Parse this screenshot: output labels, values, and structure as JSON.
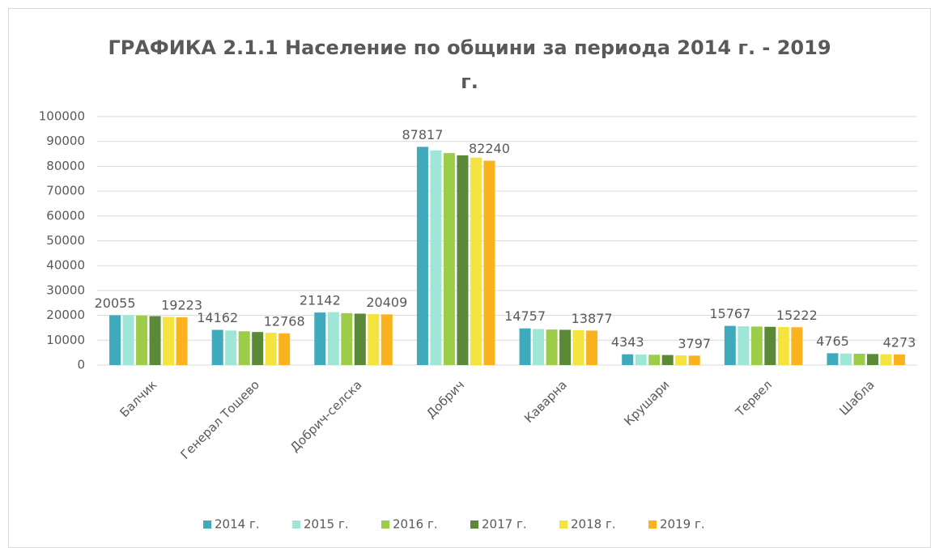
{
  "chart_data": {
    "type": "bar",
    "title": "ГРАФИКА 2.1.1 Население по общини за периода 2014 г. - 2019 г.",
    "categories": [
      "Балчик",
      "Генерал Тошево",
      "Добрич-селска",
      "Добрич",
      "Каварна",
      "Крушари",
      "Тервел",
      "Шабла"
    ],
    "series": [
      {
        "name": "2014 г.",
        "color": "#3eaabb",
        "data_labels": true,
        "values": [
          20055,
          14162,
          21142,
          87817,
          14757,
          4343,
          15767,
          4765
        ]
      },
      {
        "name": "2015 г.",
        "color": "#9fe6d6",
        "data_labels": false,
        "values": [
          20100,
          13900,
          21300,
          86400,
          14500,
          4250,
          15600,
          4650
        ]
      },
      {
        "name": "2016 г.",
        "color": "#9ccc48",
        "data_labels": false,
        "values": [
          19900,
          13600,
          20900,
          85300,
          14300,
          4150,
          15500,
          4550
        ]
      },
      {
        "name": "2017 г.",
        "color": "#5a8a38",
        "data_labels": false,
        "values": [
          19700,
          13300,
          20700,
          84400,
          14200,
          4050,
          15400,
          4450
        ]
      },
      {
        "name": "2018 г.",
        "color": "#f5e340",
        "data_labels": false,
        "values": [
          19400,
          13000,
          20500,
          83500,
          14000,
          3900,
          15300,
          4350
        ]
      },
      {
        "name": "2019 г.",
        "color": "#fbb21f",
        "data_labels": true,
        "values": [
          19223,
          12768,
          20409,
          82240,
          13877,
          3797,
          15222,
          4273
        ]
      }
    ],
    "ylim": [
      0,
      100000
    ],
    "yticks": [
      0,
      10000,
      20000,
      30000,
      40000,
      50000,
      60000,
      70000,
      80000,
      90000,
      100000
    ],
    "grid": true,
    "legend": "bottom"
  }
}
